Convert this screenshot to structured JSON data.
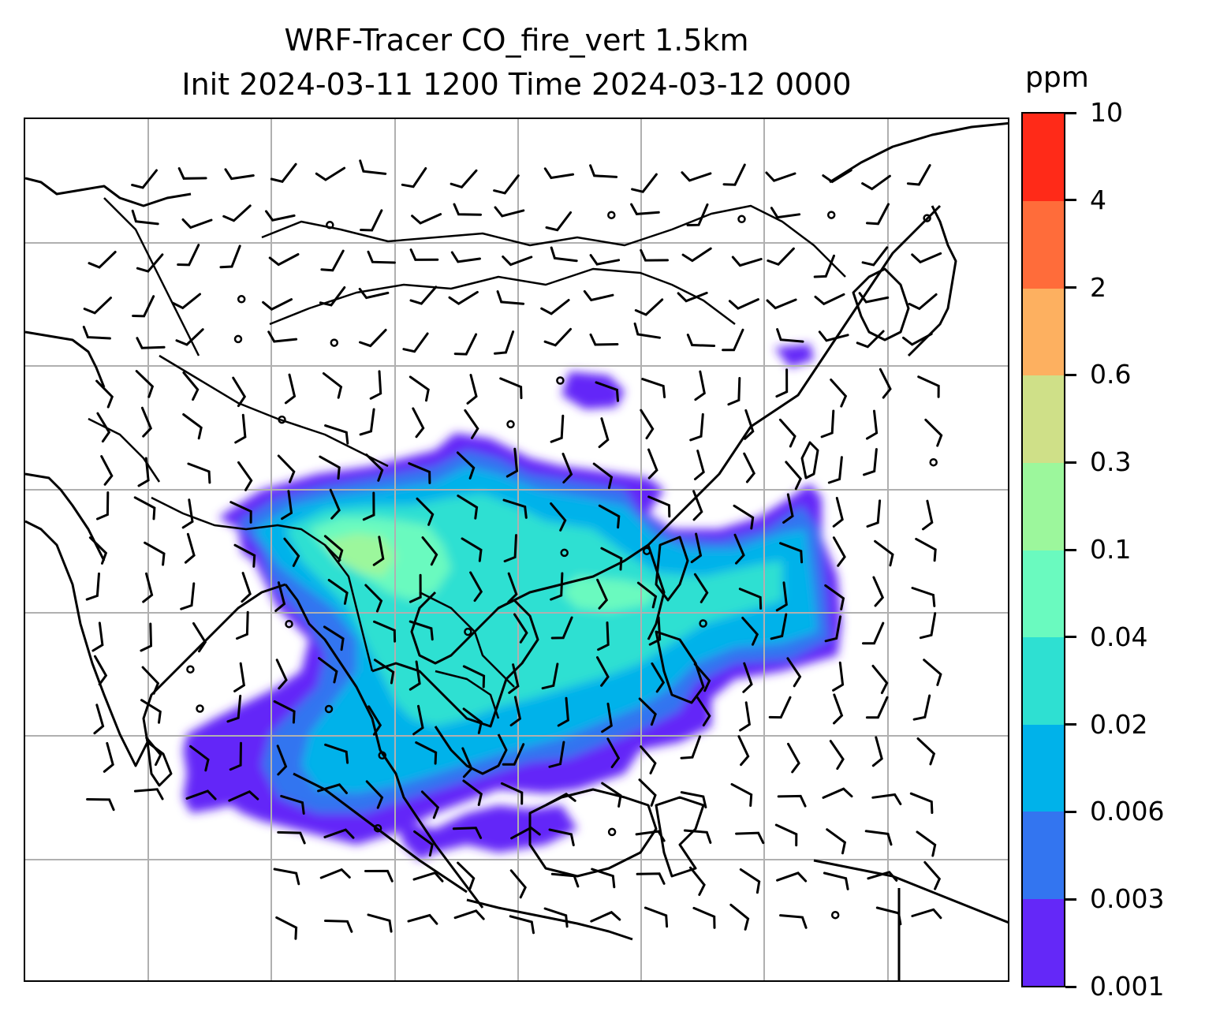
{
  "title": {
    "line1": "WRF-Tracer CO_fire_vert 1.5km",
    "line2": "Init 2024-03-11 1200 Time 2024-03-12 0000"
  },
  "colorbar": {
    "unit": "ppm",
    "levels": [
      "0.001",
      "0.003",
      "0.006",
      "0.02",
      "0.04",
      "0.1",
      "0.3",
      "0.6",
      "2",
      "4",
      "10"
    ],
    "colors": [
      "#6428f8",
      "#3375f0",
      "#00b2ea",
      "#2ee0d2",
      "#6afabf",
      "#9cf79c",
      "#cfe088",
      "#fdb060",
      "#ff6c3a",
      "#ff2a18"
    ]
  },
  "map": {
    "layers": [
      "coastlines",
      "country-borders",
      "gridlines",
      "co-tracer-fill",
      "wind-barbs"
    ],
    "colors": {
      "coastline": "#000000",
      "gridline": "#b0b0b0",
      "barb": "#000000"
    }
  }
}
